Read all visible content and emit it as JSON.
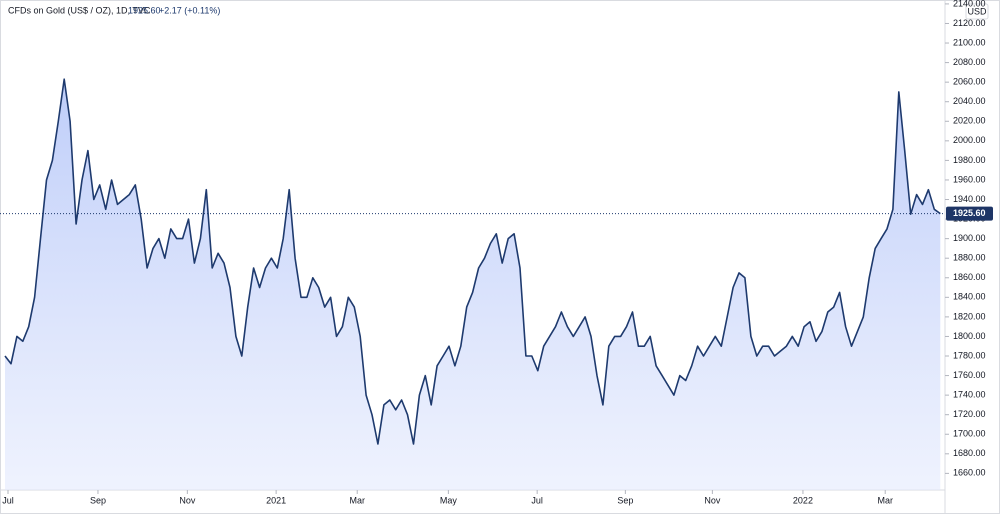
{
  "chart_data": {
    "type": "area",
    "symbol": "CFDs on Gold (US$ / OZ), 1D, TVC",
    "price": "1925.60",
    "change": "+2.17 (+0.11%)",
    "currency": "USD",
    "color": "#1e3a6e",
    "values": [
      1780,
      1772,
      1800,
      1795,
      1810,
      1840,
      1900,
      1960,
      1980,
      2020,
      2063,
      2020,
      1915,
      1960,
      1990,
      1940,
      1955,
      1930,
      1960,
      1935,
      1940,
      1945,
      1955,
      1920,
      1870,
      1890,
      1900,
      1880,
      1910,
      1900,
      1900,
      1920,
      1875,
      1900,
      1950,
      1870,
      1885,
      1875,
      1850,
      1800,
      1780,
      1830,
      1870,
      1850,
      1870,
      1880,
      1870,
      1900,
      1950,
      1880,
      1840,
      1840,
      1860,
      1850,
      1830,
      1840,
      1800,
      1810,
      1840,
      1830,
      1800,
      1740,
      1720,
      1690,
      1730,
      1735,
      1725,
      1735,
      1720,
      1690,
      1740,
      1760,
      1730,
      1770,
      1780,
      1790,
      1770,
      1790,
      1830,
      1845,
      1870,
      1880,
      1895,
      1905,
      1875,
      1900,
      1905,
      1870,
      1780,
      1780,
      1765,
      1790,
      1800,
      1810,
      1825,
      1810,
      1800,
      1810,
      1820,
      1800,
      1760,
      1730,
      1790,
      1800,
      1800,
      1810,
      1825,
      1790,
      1790,
      1800,
      1770,
      1760,
      1750,
      1740,
      1760,
      1755,
      1770,
      1790,
      1780,
      1790,
      1800,
      1790,
      1820,
      1850,
      1865,
      1860,
      1800,
      1780,
      1790,
      1790,
      1780,
      1785,
      1790,
      1800,
      1790,
      1810,
      1815,
      1795,
      1805,
      1825,
      1830,
      1845,
      1810,
      1790,
      1805,
      1820,
      1860,
      1890,
      1900,
      1910,
      1930,
      2050,
      1990,
      1925,
      1945,
      1935,
      1950,
      1930,
      1925.6
    ],
    "xlim": [
      -0.85,
      158.8
    ],
    "xticks": [
      {
        "value": 0.5,
        "label": "Jul"
      },
      {
        "value": 15.7,
        "label": "Sep"
      },
      {
        "value": 30.8,
        "label": "Nov"
      },
      {
        "value": 45.8,
        "label": "2021"
      },
      {
        "value": 59.5,
        "label": "Mar"
      },
      {
        "value": 74.9,
        "label": "May"
      },
      {
        "value": 89.9,
        "label": "Jul"
      },
      {
        "value": 104.8,
        "label": "Sep"
      },
      {
        "value": 119.5,
        "label": "Nov"
      },
      {
        "value": 134.8,
        "label": "2022"
      },
      {
        "value": 148.7,
        "label": "Mar"
      }
    ],
    "ylim": [
      1643,
      2144
    ],
    "yticks": [
      {
        "value": 1660,
        "label": "1660.00"
      },
      {
        "value": 1680,
        "label": "1680.00"
      },
      {
        "value": 1700,
        "label": "1700.00"
      },
      {
        "value": 1720,
        "label": "1720.00"
      },
      {
        "value": 1740,
        "label": "1740.00"
      },
      {
        "value": 1760,
        "label": "1760.00"
      },
      {
        "value": 1780,
        "label": "1780.00"
      },
      {
        "value": 1800,
        "label": "1800.00"
      },
      {
        "value": 1820,
        "label": "1820.00"
      },
      {
        "value": 1840,
        "label": "1840.00"
      },
      {
        "value": 1860,
        "label": "1860.00"
      },
      {
        "value": 1880,
        "label": "1880.00"
      },
      {
        "value": 1900,
        "label": "1900.00"
      },
      {
        "value": 1920,
        "label": "1920.00"
      },
      {
        "value": 1940,
        "label": "1940.00"
      },
      {
        "value": 1960,
        "label": "1960.00"
      },
      {
        "value": 1980,
        "label": "1980.00"
      },
      {
        "value": 2000,
        "label": "2000.00"
      },
      {
        "value": 2020,
        "label": "2020.00"
      },
      {
        "value": 2040,
        "label": "2040.00"
      },
      {
        "value": 2060,
        "label": "2060.00"
      },
      {
        "value": 2080,
        "label": "2080.00"
      },
      {
        "value": 2100,
        "label": "2100.00"
      },
      {
        "value": 2120,
        "label": "2120.00"
      },
      {
        "value": 2140,
        "label": "2140.00"
      }
    ]
  }
}
